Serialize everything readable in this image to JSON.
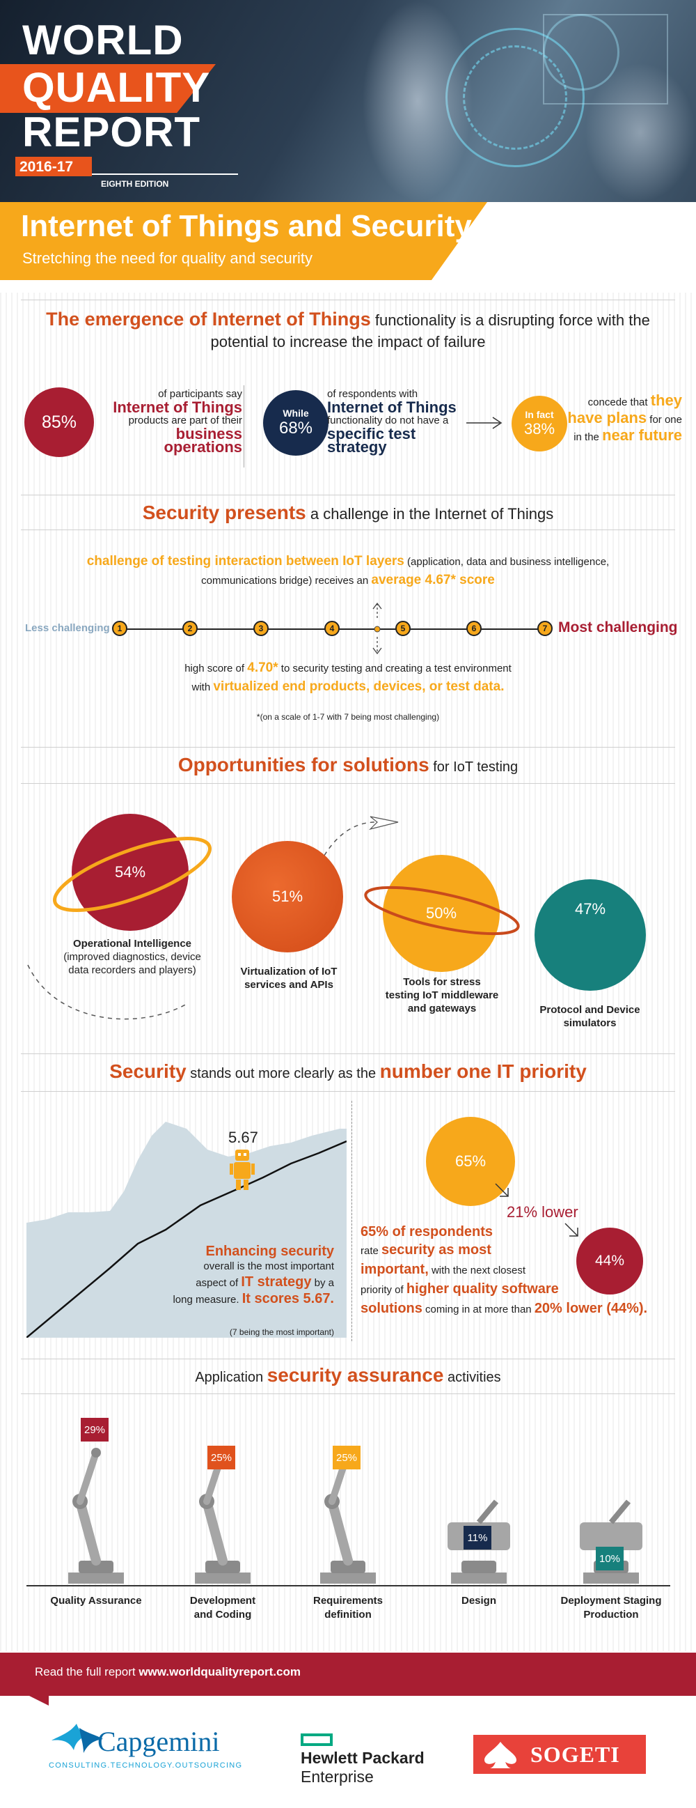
{
  "header": {
    "title_line1": "WORLD",
    "title_line2": "QUALITY",
    "title_line3": "REPORT",
    "year": "2016-17",
    "edition": "EIGHTH EDITION"
  },
  "banner": {
    "title": "Internet of Things and Security",
    "subtitle": "Stretching the need for quality and security"
  },
  "section1": {
    "title_bold": "The emergence of Internet of Things",
    "title_rest": " functionality is a disrupting force with the",
    "title_line2": "potential to increase the impact of failure",
    "stat1": {
      "value": "85%",
      "line1": "of participants say",
      "line2": "Internet of Things",
      "line3": "products are part of their",
      "line4": "business operations"
    },
    "stat2": {
      "prefix": "While",
      "value": "68%",
      "line1": "of respondents with",
      "line2": "Internet of Things",
      "line3": "functionality do not have a",
      "line4": "specific test strategy"
    },
    "stat3": {
      "prefix": "In fact",
      "value": "38%",
      "line1a": "concede that",
      "line1b": "they",
      "line2a": "have plans",
      "line2b": "for one",
      "line3a": "in the",
      "line3b": "near future"
    }
  },
  "section2": {
    "title_bold": "Security presents",
    "title_rest": " a challenge in the Internet of Things",
    "line1a": "challenge of testing interaction between IoT layers",
    "line1b": " (application, data and business intelligence,",
    "line2a": "communications bridge) receives an ",
    "line2b": "average 4.67* score",
    "scale_left": "Less challenging",
    "scale_right": "Most challenging",
    "scale_points": [
      "1",
      "2",
      "3",
      "4",
      "5",
      "6",
      "7"
    ],
    "line3a": "high score of ",
    "line3b": "4.70*",
    "line3c": " to security testing and creating a test environment",
    "line4a": "with ",
    "line4b": "virtualized end products, devices, or test data.",
    "footnote": "*(on a scale of 1-7 with 7 being most challenging)"
  },
  "section3": {
    "title_bold": "Opportunities for solutions",
    "title_rest": " for IoT testing",
    "items": [
      {
        "value": "54%",
        "line1": "Operational Intelligence",
        "line2": "(improved diagnostics, device",
        "line3": "data recorders and players)"
      },
      {
        "value": "51%",
        "line1": "Virtualization of IoT",
        "line2": "services and APIs",
        "line3": ""
      },
      {
        "value": "50%",
        "line1": "Tools for stress",
        "line2": "testing IoT middleware",
        "line3": "and gateways"
      },
      {
        "value": "47%",
        "line1": "Protocol and Device",
        "line2": "simulators",
        "line3": ""
      }
    ]
  },
  "section4": {
    "title_bold1": "Security",
    "title_rest": " stands out more clearly as the ",
    "title_bold2": "number one IT priority",
    "chart_data": {
      "type": "line",
      "peak_label": "5.67"
    },
    "left_line1": "Enhancing security",
    "left_line2": "overall is the most important",
    "left_line3a": "aspect of ",
    "left_line3b": "IT strategy",
    "left_line3c": " by a",
    "left_line4a": "long measure. ",
    "left_line4b": "It scores 5.67.",
    "left_note": "(7 being the most important)",
    "big_value": "65%",
    "small_value": "44%",
    "lower_label": "21% lower",
    "right_line1": "65% of respondents",
    "right_line2a": "rate ",
    "right_line2b": "security as most",
    "right_line3a": "important,",
    "right_line3b": " with the next closest",
    "right_line4a": "priority of ",
    "right_line4b": "higher quality software",
    "right_line5a": "solutions",
    "right_line5b": " coming in at more than ",
    "right_line5c": "20% lower (44%)."
  },
  "section5": {
    "title_rest": "Application ",
    "title_bold": "security assurance",
    "title_end": " activities",
    "items": [
      {
        "value": "29%",
        "line1": "Quality Assurance",
        "line2": "",
        "color": "#a81e32"
      },
      {
        "value": "25%",
        "line1": "Development",
        "line2": "and Coding",
        "color": "#e0521d"
      },
      {
        "value": "25%",
        "line1": "Requirements",
        "line2": "definition",
        "color": "#f7a81b"
      },
      {
        "value": "11%",
        "line1": "Design",
        "line2": "",
        "color": "#172b4d"
      },
      {
        "value": "10%",
        "line1": "Deployment Staging",
        "line2": "Production",
        "color": "#17807c"
      }
    ]
  },
  "footer": {
    "read_text": "Read the full report ",
    "url": "www.worldqualityreport.com",
    "logo1_main": "Capgemini",
    "logo1_sub": "CONSULTING.TECHNOLOGY.OUTSOURCING",
    "logo2_line1": "Hewlett Packard",
    "logo2_line2": "Enterprise",
    "logo3": "SOGETI"
  }
}
